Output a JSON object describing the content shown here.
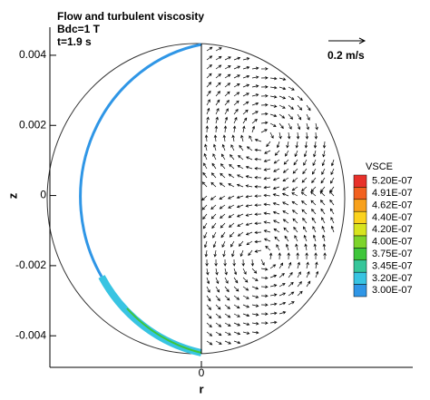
{
  "chart_data": {
    "type": "vector",
    "title": [
      "Flow and turbulent viscosity",
      "Bdc=1 T",
      "t=1.9 s"
    ],
    "reference_vector_label": "0.2 m/s",
    "xlabel": "r",
    "ylabel": "z",
    "xlim": [
      -0.0043,
      0.006
    ],
    "ylim": [
      -0.0049,
      0.0048
    ],
    "xticks": [
      0
    ],
    "yticks": [
      0.004,
      0.002,
      0,
      -0.002,
      -0.004
    ],
    "colorbar": {
      "title": "VSCE",
      "levels": [
        {
          "value": 5.2e-07,
          "label": "5.20E-07"
        },
        {
          "value": 4.91e-07,
          "label": "4.91E-07"
        },
        {
          "value": 4.62e-07,
          "label": "4.62E-07"
        },
        {
          "value": 4.4e-07,
          "label": "4.40E-07"
        },
        {
          "value": 4.2e-07,
          "label": "4.20E-07"
        },
        {
          "value": 4e-07,
          "label": "4.00E-07"
        },
        {
          "value": 3.75e-07,
          "label": "3.75E-07"
        },
        {
          "value": 3.45e-07,
          "label": "3.45E-07"
        },
        {
          "value": 3.2e-07,
          "label": "3.20E-07"
        },
        {
          "value": 3e-07,
          "label": "3.00E-07"
        }
      ],
      "colors": [
        "#e8312a",
        "#f2611f",
        "#f8a11c",
        "#fbd21c",
        "#d8e41e",
        "#7dd42a",
        "#3ec63a",
        "#36c69a",
        "#38c4e2",
        "#2f96e6"
      ]
    }
  }
}
